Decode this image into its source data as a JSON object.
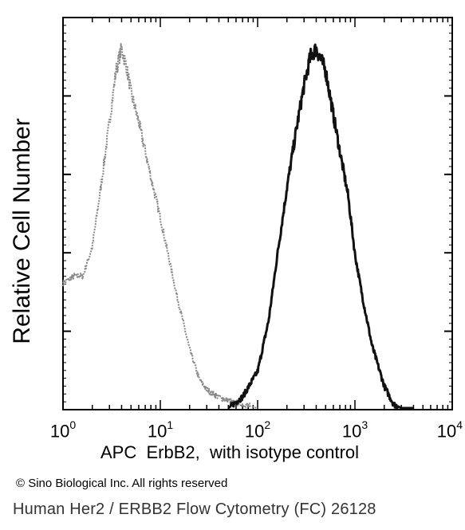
{
  "chart_data": {
    "type": "area",
    "xscale": "log",
    "xlim": [
      1,
      10000
    ],
    "ylabel": "Relative Cell Number",
    "xlabel": "APC  ErbB2,  with isotype control",
    "x_ticks": [
      {
        "base": "10",
        "exp": "0"
      },
      {
        "base": "10",
        "exp": "1"
      },
      {
        "base": "10",
        "exp": "2"
      },
      {
        "base": "10",
        "exp": "3"
      },
      {
        "base": "10",
        "exp": "4"
      }
    ],
    "grid": false,
    "series": [
      {
        "role": "isotype control",
        "color": "#888888",
        "x": [
          1,
          1.3,
          1.6,
          2,
          2.5,
          3,
          3.5,
          4,
          4.5,
          5,
          6,
          7,
          8,
          10,
          12,
          15,
          20,
          25,
          30,
          40,
          50,
          70,
          100
        ],
        "y": [
          0.34,
          0.36,
          0.36,
          0.44,
          0.62,
          0.78,
          0.92,
          0.98,
          0.93,
          0.86,
          0.78,
          0.7,
          0.63,
          0.52,
          0.42,
          0.3,
          0.16,
          0.08,
          0.05,
          0.03,
          0.02,
          0.01,
          0.0
        ]
      },
      {
        "role": "ErbB2",
        "color": "#111111",
        "x": [
          50,
          70,
          100,
          130,
          160,
          200,
          250,
          300,
          350,
          400,
          450,
          500,
          600,
          700,
          850,
          1000,
          1200,
          1500,
          2000,
          2500,
          3000,
          4000
        ],
        "y": [
          0.0,
          0.03,
          0.1,
          0.24,
          0.42,
          0.6,
          0.76,
          0.88,
          0.96,
          0.98,
          0.95,
          0.92,
          0.8,
          0.7,
          0.58,
          0.42,
          0.3,
          0.17,
          0.06,
          0.01,
          0.0,
          0.0
        ]
      }
    ]
  },
  "footer": {
    "copyright": "© Sino Biological Inc. All rights reserved",
    "caption": "Human Her2 / ERBB2 Flow Cytometry (FC) 26128"
  }
}
